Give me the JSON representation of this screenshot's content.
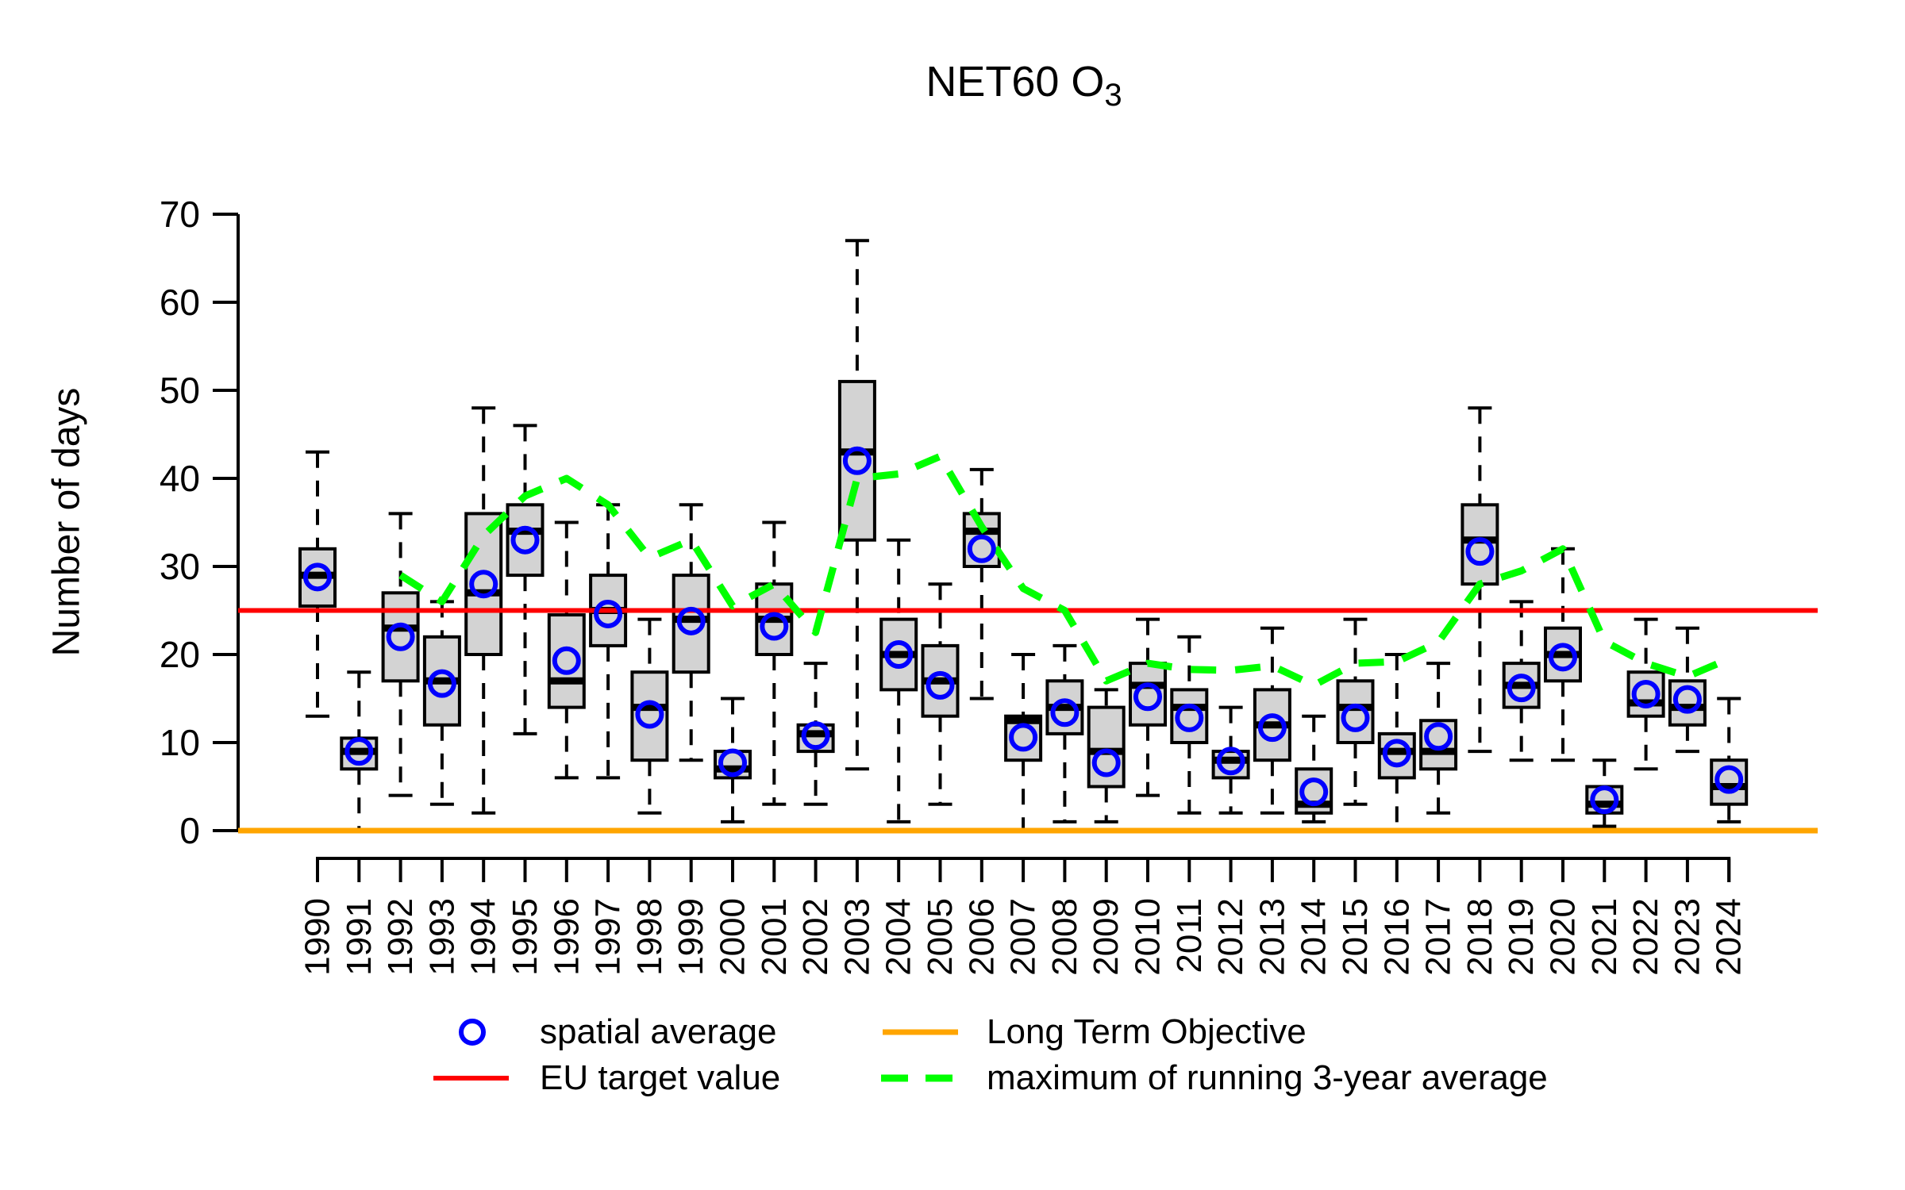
{
  "title": {
    "main": "NET60 O",
    "sub": "3"
  },
  "ylabel": "Number of days",
  "legend": {
    "spatial_average": "spatial average",
    "long_term_objective": "Long Term Objective",
    "eu_target_value": "EU target value",
    "max_running_avg": "maximum of running 3-year average"
  },
  "colors": {
    "box_fill": "#d3d3d3",
    "box_stroke": "#000000",
    "mean_circle": "#0000FF",
    "eu_target": "#FF0000",
    "long_term_objective": "#FFA500",
    "running_avg": "#00FF00",
    "axis": "#000000"
  },
  "chart_data": {
    "type": "boxplot",
    "title": "NET60 O3",
    "xlabel": "",
    "ylabel": "Number of days",
    "ylim": [
      0,
      70
    ],
    "y_ticks": [
      0,
      10,
      20,
      30,
      40,
      50,
      60,
      70
    ],
    "reference_lines": {
      "eu_target_value": 25,
      "long_term_objective": 0
    },
    "legend_position": "bottom",
    "grid": false,
    "years": [
      1990,
      1991,
      1992,
      1993,
      1994,
      1995,
      1996,
      1997,
      1998,
      1999,
      2000,
      2001,
      2002,
      2003,
      2004,
      2005,
      2006,
      2007,
      2008,
      2009,
      2010,
      2011,
      2012,
      2013,
      2014,
      2015,
      2016,
      2017,
      2018,
      2019,
      2020,
      2021,
      2022,
      2023,
      2024
    ],
    "whisker_low": [
      13,
      0,
      4,
      3,
      2,
      11,
      6,
      6,
      2,
      8,
      1,
      3,
      3,
      7,
      1,
      3,
      15,
      0,
      1,
      1,
      4,
      2,
      2,
      2,
      1,
      3,
      0,
      2,
      9,
      8,
      8,
      0.5,
      7,
      9,
      1
    ],
    "q1": [
      25.5,
      7,
      17,
      12,
      20,
      29,
      14,
      21,
      8,
      18,
      6,
      20,
      9,
      33,
      16,
      13,
      30,
      8,
      11,
      5,
      12,
      10,
      6,
      8,
      2,
      10,
      6,
      7,
      28,
      14,
      17,
      2,
      13,
      12,
      3
    ],
    "median": [
      29,
      9,
      23,
      17,
      27,
      34,
      17,
      25,
      14,
      24,
      7,
      24,
      11,
      43,
      20,
      17,
      34,
      12.5,
      14,
      9,
      16.5,
      14,
      8,
      12,
      3,
      14,
      9,
      9,
      33,
      16.5,
      20,
      3,
      14.5,
      14,
      5
    ],
    "q3": [
      32,
      10.5,
      27,
      22,
      36,
      37,
      24.5,
      29,
      18,
      29,
      9,
      28,
      12,
      51,
      24,
      21,
      36,
      13,
      17,
      14,
      19,
      16,
      9,
      16,
      7,
      17,
      11,
      12.5,
      37,
      19,
      23,
      5,
      18,
      17,
      8
    ],
    "whisker_high": [
      43,
      18,
      36,
      26,
      48,
      46,
      35,
      37,
      24,
      37,
      15,
      35,
      19,
      67,
      33,
      28,
      41,
      20,
      21,
      16,
      24,
      22,
      14,
      23,
      13,
      24,
      20,
      19,
      48,
      26,
      32,
      8,
      24,
      23,
      15
    ],
    "spatial_average": [
      28.8,
      9,
      22,
      16.7,
      28,
      33,
      19.3,
      24.6,
      13.2,
      23.8,
      7.7,
      23.2,
      10.8,
      42,
      20,
      16.5,
      32,
      10.6,
      13.4,
      7.7,
      15.2,
      12.8,
      7.9,
      11.7,
      4.4,
      12.8,
      8.8,
      10.7,
      31.7,
      16.2,
      19.7,
      3.5,
      15.5,
      14.9,
      5.8
    ],
    "max_running_3yr_average": [
      null,
      null,
      29,
      26,
      33.5,
      38,
      40,
      37,
      31,
      33,
      25.5,
      28,
      22.5,
      40,
      40.5,
      42.5,
      34.5,
      27.5,
      25,
      17,
      19,
      18.3,
      18.2,
      18.7,
      16.5,
      19,
      19.2,
      21.4,
      28,
      29.5,
      32,
      21.5,
      19,
      17.5,
      19.5
    ]
  }
}
